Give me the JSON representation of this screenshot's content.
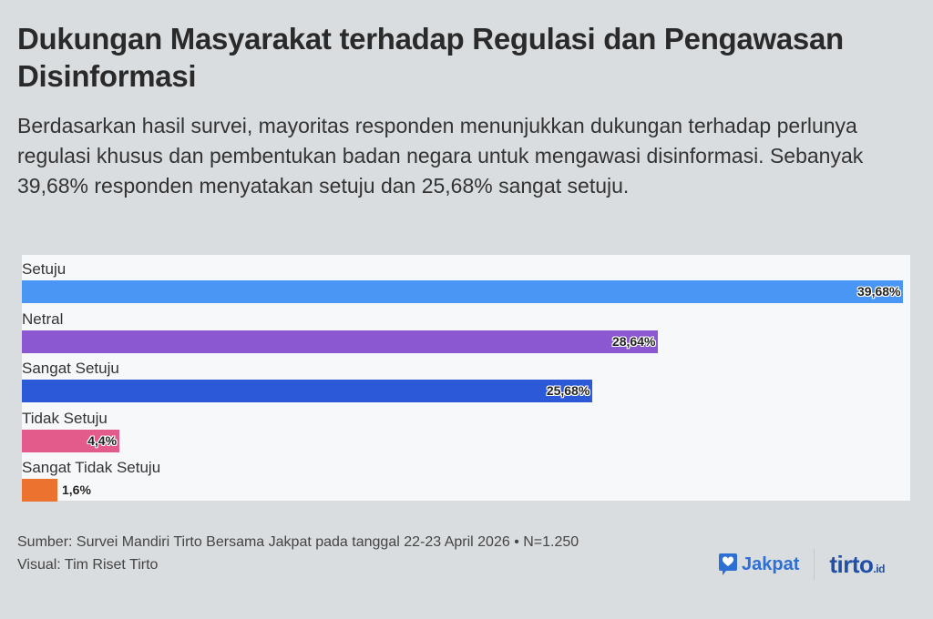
{
  "title": "Dukungan Masyarakat terhadap Regulasi dan Pengawasan Disinformasi",
  "subtitle": "Berdasarkan hasil survei, mayoritas responden menunjukkan dukungan terhadap perlunya regulasi khusus dan pembentukan badan negara untuk mengawasi disinformasi. Sebanyak 39,68% responden menyatakan setuju dan 25,68% sangat setuju.",
  "chart_data": {
    "type": "bar",
    "orientation": "horizontal",
    "categories": [
      "Setuju",
      "Netral",
      "Sangat Setuju",
      "Tidak Setuju",
      "Sangat Tidak Setuju"
    ],
    "values": [
      39.68,
      28.64,
      25.68,
      4.4,
      1.6
    ],
    "labels": [
      "39,68%",
      "28,64%",
      "25,68%",
      "4,4%",
      "1,6%"
    ],
    "colors": [
      "#4a96f5",
      "#8c58d2",
      "#2b59d8",
      "#e35b8a",
      "#ec7230"
    ],
    "unit": "%",
    "xlim": [
      0,
      39.68
    ],
    "grid": false
  },
  "footer": {
    "source": "Sumber: Survei Mandiri Tirto Bersama Jakpat pada tanggal 22-23 April 2026 • N=1.250",
    "visual": "Visual: Tim Riset Tirto"
  },
  "logos": {
    "jakpat": "Jakpat",
    "tirto": "tirto",
    "tirto_suffix": ".id"
  }
}
